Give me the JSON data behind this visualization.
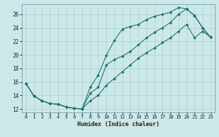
{
  "xlabel": "Humidex (Indice chaleur)",
  "bg_color": "#cde8e8",
  "grid_color": "#aacccc",
  "line_color": "#1a7070",
  "xlim": [
    -0.5,
    23.5
  ],
  "ylim": [
    11.5,
    27.5
  ],
  "xticks": [
    0,
    1,
    2,
    3,
    4,
    5,
    6,
    7,
    8,
    9,
    10,
    11,
    12,
    13,
    14,
    15,
    16,
    17,
    18,
    19,
    20,
    21,
    22,
    23
  ],
  "yticks": [
    12,
    14,
    16,
    18,
    20,
    22,
    24,
    26
  ],
  "line1_x": [
    0,
    1,
    2,
    3,
    4,
    5,
    6,
    7,
    8,
    9,
    10,
    11,
    12,
    13,
    14,
    15,
    16,
    17,
    18,
    19,
    20,
    21,
    22,
    23
  ],
  "line1_y": [
    15.8,
    13.9,
    13.2,
    12.8,
    12.7,
    12.3,
    12.1,
    12.0,
    15.2,
    17.0,
    19.9,
    22.1,
    23.8,
    24.2,
    24.5,
    25.2,
    25.7,
    26.0,
    26.3,
    27.0,
    26.8,
    25.8,
    24.0,
    22.6
  ],
  "line2_x": [
    0,
    1,
    2,
    3,
    4,
    5,
    6,
    7,
    8,
    9,
    10,
    11,
    12,
    13,
    14,
    15,
    16,
    17,
    18,
    19,
    20,
    21,
    22,
    23
  ],
  "line2_y": [
    15.8,
    13.9,
    13.2,
    12.8,
    12.7,
    12.3,
    12.1,
    12.0,
    14.3,
    15.2,
    18.5,
    19.3,
    19.8,
    20.5,
    21.5,
    22.5,
    23.3,
    24.0,
    24.8,
    26.0,
    26.8,
    25.8,
    24.0,
    22.6
  ],
  "line3_x": [
    0,
    1,
    2,
    3,
    4,
    5,
    6,
    7,
    8,
    9,
    10,
    11,
    12,
    13,
    14,
    15,
    16,
    17,
    18,
    19,
    20,
    21,
    22,
    23
  ],
  "line3_y": [
    15.8,
    13.9,
    13.2,
    12.8,
    12.7,
    12.3,
    12.1,
    12.0,
    13.2,
    14.0,
    15.5,
    16.5,
    17.5,
    18.5,
    19.5,
    20.3,
    21.0,
    21.8,
    22.5,
    23.5,
    24.5,
    22.5,
    23.5,
    22.6
  ]
}
